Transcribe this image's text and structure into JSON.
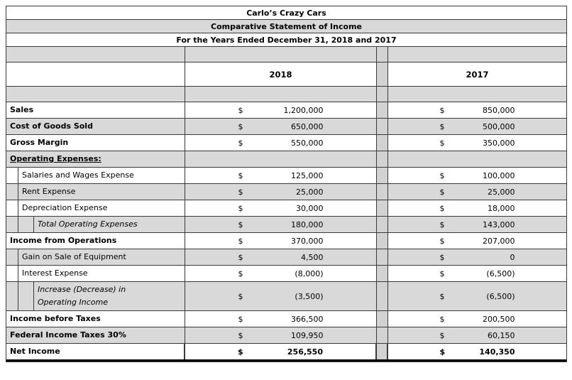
{
  "page": {
    "background": "#ffffff"
  },
  "table": {
    "titles": [
      "Carlo’s Crazy Cars",
      "Comparative Statement of Income",
      "For the Years Ended December 31, 2018 and 2017"
    ],
    "columns": {
      "col2018": "2018",
      "col2017": "2017"
    },
    "currency": "$",
    "colors": {
      "shaded_row": "#d9d9d9",
      "gap_column": "#d2d2d2",
      "border": "#3a3a3a"
    },
    "rows": [
      {
        "label": "Sales",
        "style": "bold",
        "indent": 0,
        "shaded": false,
        "v2018": "1,200,000",
        "v2017": "850,000"
      },
      {
        "label": "Cost of Goods Sold",
        "style": "bold",
        "indent": 0,
        "shaded": true,
        "v2018": "650,000",
        "v2017": "500,000"
      },
      {
        "label": "Gross Margin",
        "style": "bold",
        "indent": 0,
        "shaded": false,
        "v2018": "550,000",
        "v2017": "350,000"
      },
      {
        "label": "Operating Expenses:",
        "style": "bold underline",
        "indent": 0,
        "shaded": true,
        "v2018": null,
        "v2017": null
      },
      {
        "label": "Salaries and Wages Expense",
        "style": "",
        "indent": 1,
        "shaded": false,
        "v2018": "125,000",
        "v2017": "100,000"
      },
      {
        "label": "Rent Expense",
        "style": "",
        "indent": 1,
        "shaded": true,
        "v2018": "25,000",
        "v2017": "25,000"
      },
      {
        "label": "Depreciation Expense",
        "style": "",
        "indent": 1,
        "shaded": false,
        "v2018": "30,000",
        "v2017": "18,000"
      },
      {
        "label": "Total Operating Expenses",
        "style": "italic",
        "indent": 2,
        "shaded": true,
        "v2018": "180,000",
        "v2017": "143,000"
      },
      {
        "label": "Income from Operations",
        "style": "bold",
        "indent": 0,
        "shaded": false,
        "v2018": "370,000",
        "v2017": "207,000"
      },
      {
        "label": "Gain on Sale of Equipment",
        "style": "",
        "indent": 1,
        "shaded": true,
        "v2018": "4,500",
        "v2017": "0"
      },
      {
        "label": "Interest Expense",
        "style": "",
        "indent": 1,
        "shaded": false,
        "v2018": "(8,000)",
        "v2017": "(6,500)"
      },
      {
        "label": "Increase (Decrease) in\nOperating Income",
        "style": "italic",
        "indent": 2,
        "shaded": true,
        "v2018": "(3,500)",
        "v2017": "(6,500)"
      },
      {
        "label": "Income before Taxes",
        "style": "bold",
        "indent": 0,
        "shaded": false,
        "v2018": "366,500",
        "v2017": "200,500"
      },
      {
        "label": "Federal Income Taxes 30%",
        "style": "bold",
        "indent": 0,
        "shaded": true,
        "v2018": "109,950",
        "v2017": "60,150"
      },
      {
        "label": "Net Income",
        "style": "bold",
        "indent": 0,
        "shaded": false,
        "v2018": "256,550",
        "v2017": "140,350",
        "values_bold": true,
        "total": true
      }
    ]
  }
}
